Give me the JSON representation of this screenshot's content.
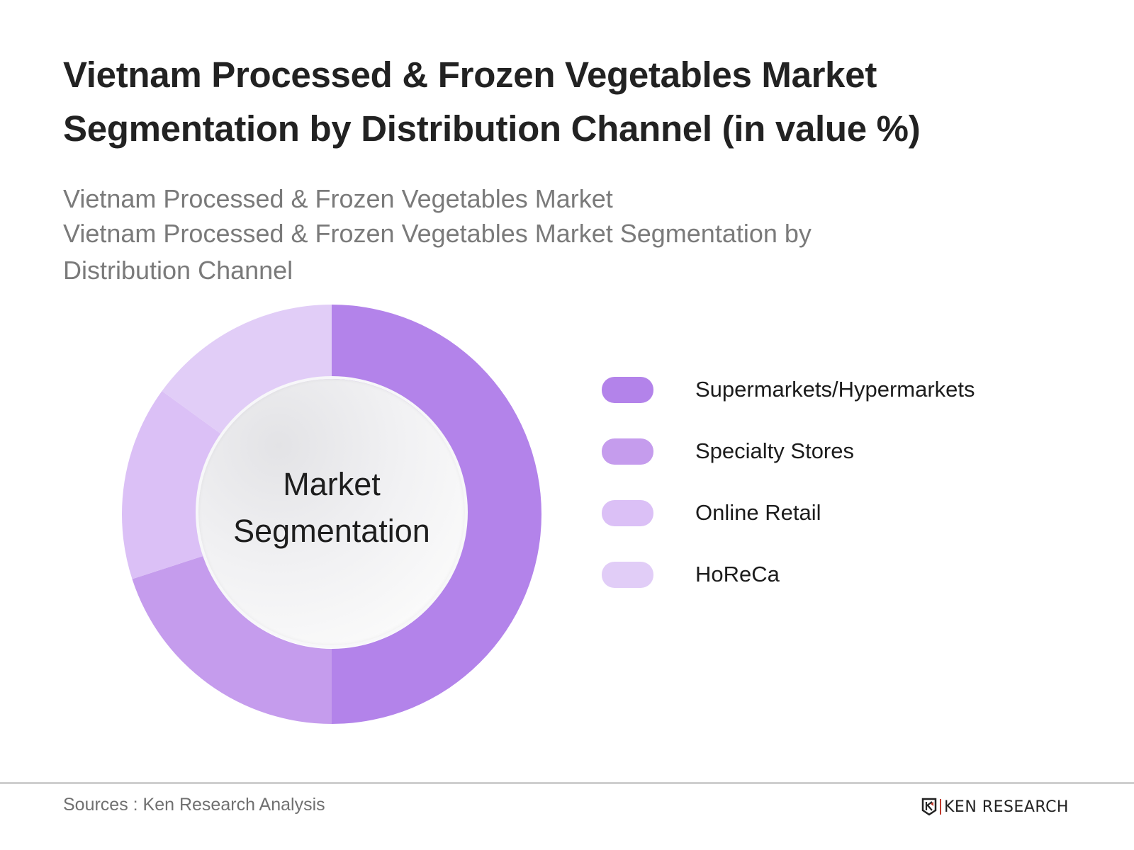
{
  "title": {
    "line1": "Vietnam Processed & Frozen Vegetables Market",
    "line2": "Segmentation by Distribution Channel (in value %)"
  },
  "subtitle": {
    "line1": "Vietnam Processed & Frozen Vegetables Market",
    "line2": "Vietnam Processed & Frozen Vegetables Market Segmentation by",
    "line3": "Distribution Channel"
  },
  "center_label": {
    "line1": "Market",
    "line2": "Segmentation"
  },
  "legend": [
    {
      "label": "Supermarkets/Hypermarkets",
      "color": "#b383ea"
    },
    {
      "label": "Specialty Stores",
      "color": "#c59ced"
    },
    {
      "label": "Online Retail",
      "color": "#dbc0f6"
    },
    {
      "label": "HoReCa",
      "color": "#e1cdf7"
    }
  ],
  "footer": {
    "source": "Sources : Ken Research Analysis",
    "logo_text": "KEN RESEARCH"
  },
  "chart_data": {
    "type": "pie",
    "variant": "donut",
    "title": "Vietnam Processed & Frozen Vegetables Market Segmentation by Distribution Channel (in value %)",
    "subtitle": "Vietnam Processed & Frozen Vegetables Market Segmentation by Distribution Channel",
    "center_text": "Market Segmentation",
    "categories": [
      "Supermarkets/Hypermarkets",
      "Specialty Stores",
      "Online Retail",
      "HoReCa"
    ],
    "values": [
      50,
      20,
      15,
      15
    ],
    "colors": [
      "#b383ea",
      "#c59ced",
      "#dbc0f6",
      "#e1cdf7"
    ],
    "unit": "%",
    "start_angle": "12 o'clock, clockwise",
    "data_labels_shown": false,
    "legend_position": "right",
    "source": "Ken Research Analysis"
  }
}
